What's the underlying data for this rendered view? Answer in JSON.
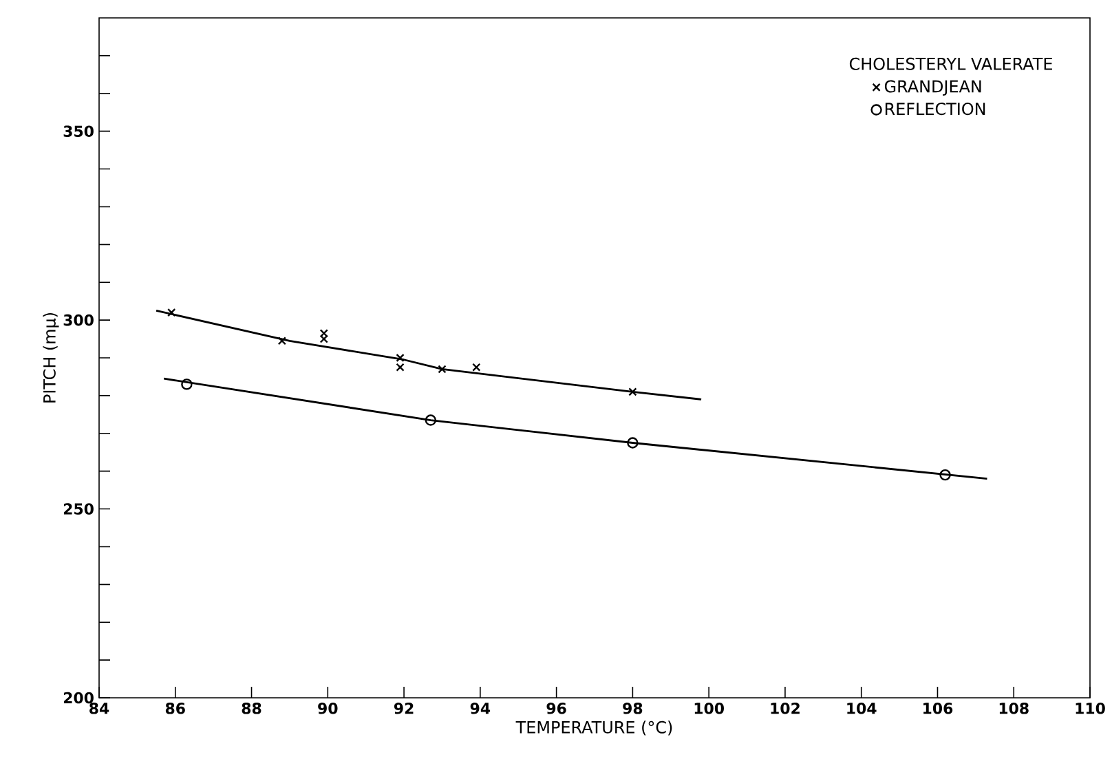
{
  "chart_data": {
    "type": "scatter",
    "xlabel": "TEMPERATURE (°C)",
    "ylabel": "PITCH (mμ)",
    "legend_title": "CHOLESTERYL VALERATE",
    "legend": "top right",
    "xlim": [
      84,
      110
    ],
    "ylim": [
      200,
      380
    ],
    "xticks": [
      84,
      86,
      88,
      90,
      92,
      94,
      96,
      98,
      100,
      102,
      104,
      106,
      108,
      110
    ],
    "yticks": [
      200,
      {
        "value": 210,
        "label": null
      },
      {
        "value": 220,
        "label": null
      },
      {
        "value": 230,
        "label": null
      },
      {
        "value": 240,
        "label": null
      },
      250,
      {
        "value": 260,
        "label": null
      },
      {
        "value": 270,
        "label": null
      },
      {
        "value": 280,
        "label": null
      },
      {
        "value": 290,
        "label": null
      },
      300,
      {
        "value": 310,
        "label": null
      },
      {
        "value": 320,
        "label": null
      },
      {
        "value": 330,
        "label": null
      },
      {
        "value": 340,
        "label": null
      },
      350,
      {
        "value": 360,
        "label": null
      },
      {
        "value": 370,
        "label": null
      }
    ],
    "series": [
      {
        "name": "GRANDJEAN",
        "marker": "cross",
        "color": "#000000",
        "x": [
          85.9,
          88.8,
          89.9,
          89.9,
          91.9,
          91.9,
          93.0,
          93.9,
          98.0
        ],
        "values": [
          302,
          294.5,
          296.5,
          295,
          290,
          287.5,
          287,
          287.5,
          281
        ]
      },
      {
        "name": "REFLECTION",
        "marker": "circle",
        "color": "#000000",
        "x": [
          86.3,
          92.7,
          98.0,
          106.2
        ],
        "values": [
          283,
          273.5,
          267.5,
          259
        ]
      },
      {
        "type": "line",
        "color": "#000000",
        "x": [
          85.5,
          89,
          92,
          93,
          98,
          99.8
        ],
        "values": [
          302.5,
          294.5,
          289.5,
          287,
          281,
          279
        ]
      },
      {
        "type": "line",
        "color": "#000000",
        "x": [
          85.7,
          92.7,
          98,
          107.3
        ],
        "values": [
          284.5,
          273.5,
          267.5,
          258
        ]
      }
    ]
  }
}
